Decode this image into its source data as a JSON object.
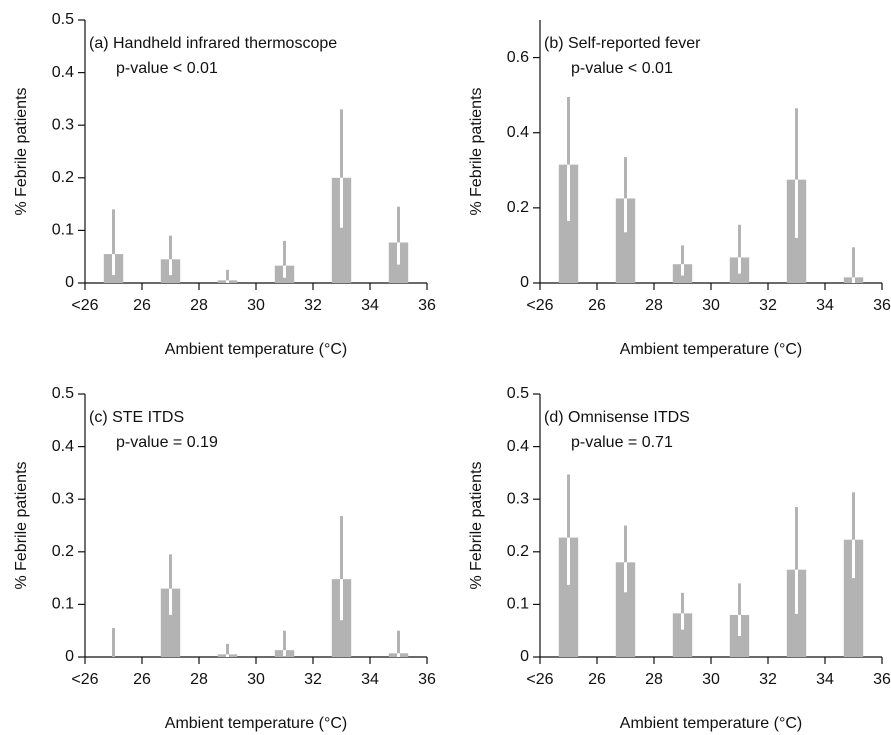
{
  "chart_data": [
    {
      "type": "bar",
      "title": "(a) Handheld infrared thermoscope",
      "subtitle": "p-value < 0.01",
      "x_label": "Ambient temperature (°C)",
      "y_label": "% Febrile patients",
      "x": [
        25,
        27,
        29,
        31,
        33,
        35
      ],
      "values": [
        0.055,
        0.045,
        0.005,
        0.033,
        0.2,
        0.077
      ],
      "lower": [
        0.015,
        0.015,
        0,
        0.01,
        0.105,
        0.035
      ],
      "upper": [
        0.14,
        0.09,
        0.025,
        0.08,
        0.33,
        0.145
      ],
      "color": "#b3b3b3",
      "xlim": [
        24,
        36
      ],
      "xticks": [
        {
          "value": 24,
          "label": "<26"
        },
        26,
        28,
        30,
        32,
        34,
        36
      ],
      "ylim": [
        0,
        0.5
      ],
      "yticks": [
        0,
        0.1,
        0.2,
        0.3,
        0.4,
        0.5
      ]
    },
    {
      "type": "bar",
      "title": "(b) Self-reported fever",
      "subtitle": "p-value < 0.01",
      "x_label": "Ambient temperature (°C)",
      "y_label": "% Febrile patients",
      "x": [
        25,
        27,
        29,
        31,
        33,
        35
      ],
      "values": [
        0.315,
        0.225,
        0.05,
        0.068,
        0.275,
        0.015
      ],
      "lower": [
        0.165,
        0.135,
        0.02,
        0.025,
        0.12,
        0
      ],
      "upper": [
        0.495,
        0.335,
        0.1,
        0.155,
        0.465,
        0.095
      ],
      "color": "#b3b3b3",
      "xlim": [
        24,
        36
      ],
      "xticks": [
        {
          "value": 24,
          "label": "<26"
        },
        26,
        28,
        30,
        32,
        34,
        36
      ],
      "ylim": [
        0,
        0.7
      ],
      "yticks": [
        0,
        0.2,
        0.4,
        0.6
      ]
    },
    {
      "type": "bar",
      "title": "(c) STE ITDS",
      "subtitle": "p-value = 0.19",
      "x_label": "Ambient temperature (°C)",
      "y_label": "% Febrile patients",
      "x": [
        25,
        27,
        29,
        31,
        33,
        35
      ],
      "values": [
        0,
        0.13,
        0.005,
        0.013,
        0.148,
        0.007
      ],
      "lower": [
        0,
        0.08,
        0,
        0.002,
        0.07,
        0
      ],
      "upper": [
        0.055,
        0.195,
        0.025,
        0.05,
        0.268,
        0.05
      ],
      "color": "#b3b3b3",
      "xlim": [
        24,
        36
      ],
      "xticks": [
        {
          "value": 24,
          "label": "<26"
        },
        26,
        28,
        30,
        32,
        34,
        36
      ],
      "ylim": [
        0,
        0.5
      ],
      "yticks": [
        0,
        0.1,
        0.2,
        0.3,
        0.4,
        0.5
      ]
    },
    {
      "type": "bar",
      "title": "(d) Omnisense ITDS",
      "subtitle": "p-value = 0.71",
      "x_label": "Ambient temperature (°C)",
      "y_label": "% Febrile patients",
      "x": [
        25,
        27,
        29,
        31,
        33,
        35
      ],
      "values": [
        0.227,
        0.18,
        0.083,
        0.08,
        0.166,
        0.223
      ],
      "lower": [
        0.137,
        0.123,
        0.052,
        0.04,
        0.082,
        0.15
      ],
      "upper": [
        0.347,
        0.25,
        0.122,
        0.14,
        0.285,
        0.313
      ],
      "color": "#b3b3b3",
      "xlim": [
        24,
        36
      ],
      "xticks": [
        {
          "value": 24,
          "label": "<26"
        },
        26,
        28,
        30,
        32,
        34,
        36
      ],
      "ylim": [
        0,
        0.5
      ],
      "yticks": [
        0,
        0.1,
        0.2,
        0.3,
        0.4,
        0.5
      ]
    }
  ]
}
